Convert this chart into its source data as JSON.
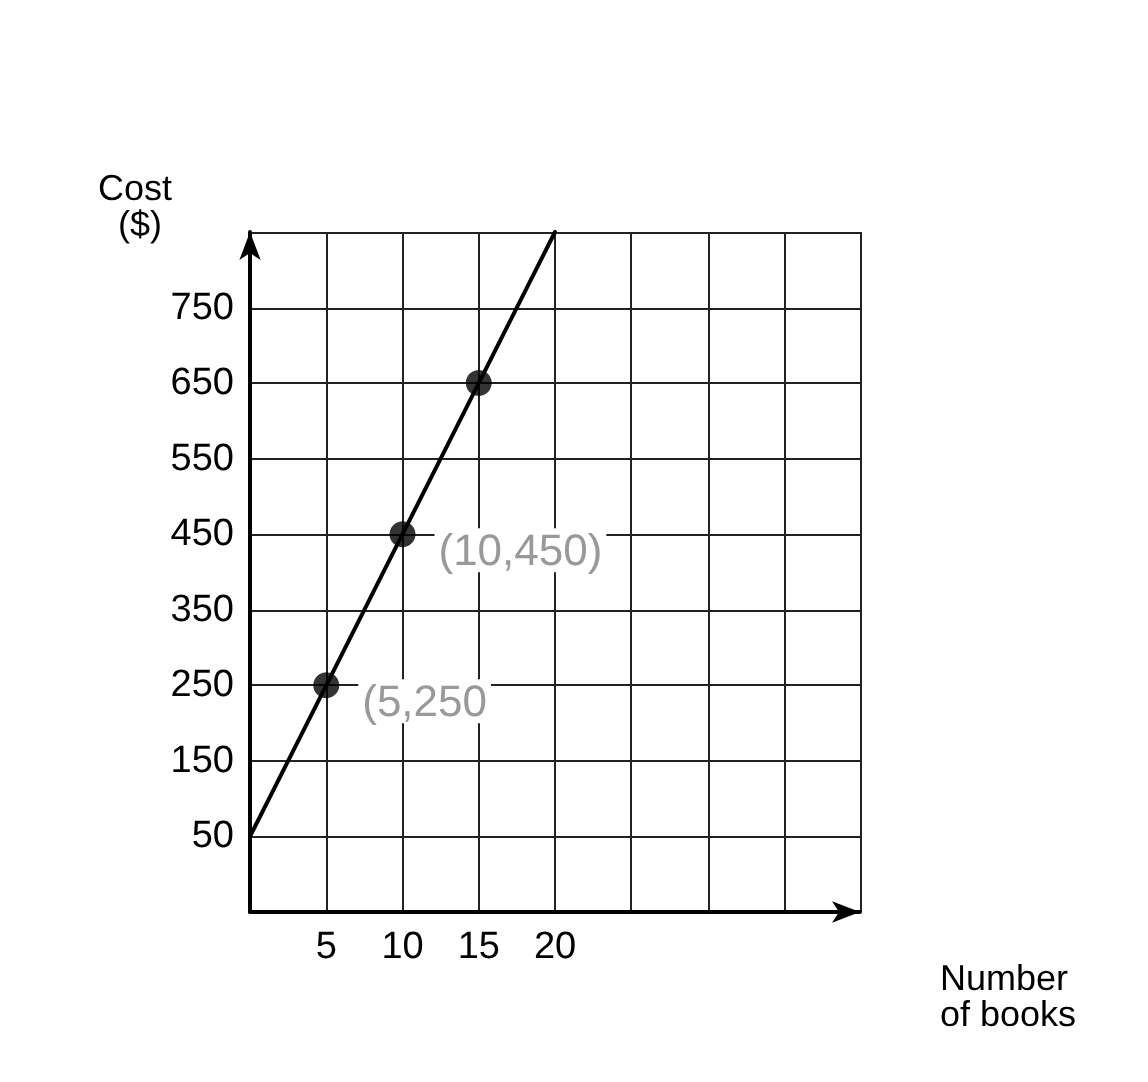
{
  "chart_data": {
    "type": "line",
    "xlabel": "Number of books",
    "ylabel": "Cost ($)",
    "xlim": [
      0,
      40
    ],
    "xticks": [
      5,
      10,
      15,
      20,
      {
        "value": 25,
        "label": null
      },
      {
        "value": 30,
        "label": null
      },
      {
        "value": 35,
        "label": null
      },
      {
        "value": 40,
        "label": null
      }
    ],
    "ylim": [
      -50,
      850
    ],
    "yticks": [
      50,
      150,
      250,
      350,
      450,
      550,
      650,
      750,
      {
        "value": 850,
        "label": null
      }
    ],
    "grid": true,
    "series": [
      {
        "color": "#000000",
        "marker": "none",
        "x": [
          0,
          5,
          10,
          15,
          20
        ],
        "values": [
          50,
          250,
          450,
          650,
          850
        ]
      },
      {
        "type": "scatter",
        "color": "#000000",
        "marker": "circle",
        "x": [
          5,
          10,
          15
        ],
        "values": [
          250,
          450,
          650
        ]
      }
    ],
    "annotations": [
      {
        "text": "(10,450)",
        "x": 10,
        "y": 450
      },
      {
        "text": "(5,250",
        "x": 5,
        "y": 250
      }
    ]
  }
}
